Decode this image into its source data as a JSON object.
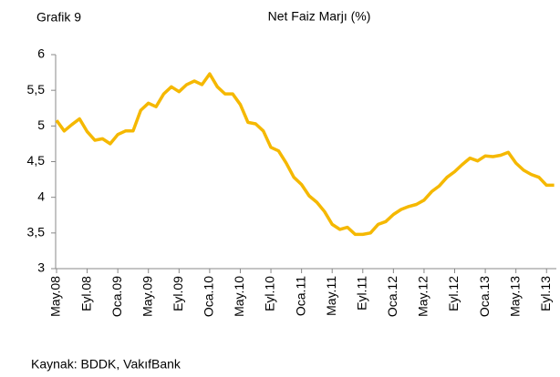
{
  "chart_data": {
    "type": "line",
    "label": "Grafik 9",
    "title": "Net Faiz Marjı (%)",
    "source": "Kaynak: BDDK, VakıfBank",
    "categories": [
      "May.08",
      null,
      null,
      null,
      "Eyl.08",
      null,
      null,
      null,
      "Oca.09",
      null,
      null,
      null,
      "May.09",
      null,
      null,
      null,
      "Eyl.09",
      null,
      null,
      null,
      "Oca.10",
      null,
      null,
      null,
      "May.10",
      null,
      null,
      null,
      "Eyl.10",
      null,
      null,
      null,
      "Oca.11",
      null,
      null,
      null,
      "May.11",
      null,
      null,
      null,
      "Eyl.11",
      null,
      null,
      null,
      "Oca.12",
      null,
      null,
      null,
      "May.12",
      null,
      null,
      null,
      "Eyl.12",
      null,
      null,
      null,
      "Oca.13",
      null,
      null,
      null,
      "May.13",
      null,
      null,
      null,
      "Eyl.13",
      null
    ],
    "values": [
      5.08,
      4.93,
      5.02,
      5.1,
      4.92,
      4.8,
      4.82,
      4.75,
      4.88,
      4.93,
      4.93,
      5.22,
      5.32,
      5.27,
      5.45,
      5.55,
      5.48,
      5.58,
      5.63,
      5.58,
      5.73,
      5.55,
      5.45,
      5.45,
      5.3,
      5.05,
      5.03,
      4.93,
      4.7,
      4.65,
      4.48,
      4.28,
      4.18,
      4.02,
      3.93,
      3.8,
      3.62,
      3.55,
      3.58,
      3.48,
      3.48,
      3.5,
      3.62,
      3.66,
      3.76,
      3.83,
      3.87,
      3.9,
      3.96,
      4.08,
      4.16,
      4.28,
      4.36,
      4.46,
      4.55,
      4.51,
      4.58,
      4.57,
      4.59,
      4.63,
      4.48,
      4.38,
      4.32,
      4.28,
      4.17,
      4.17
    ],
    "color": "#f5b800",
    "ylim": [
      3,
      6
    ],
    "yticks": [
      3,
      {
        "value": 3.5,
        "label": "3,5"
      },
      4,
      {
        "value": 4.5,
        "label": "4,5"
      },
      5,
      {
        "value": 5.5,
        "label": "5,5"
      },
      6
    ]
  }
}
